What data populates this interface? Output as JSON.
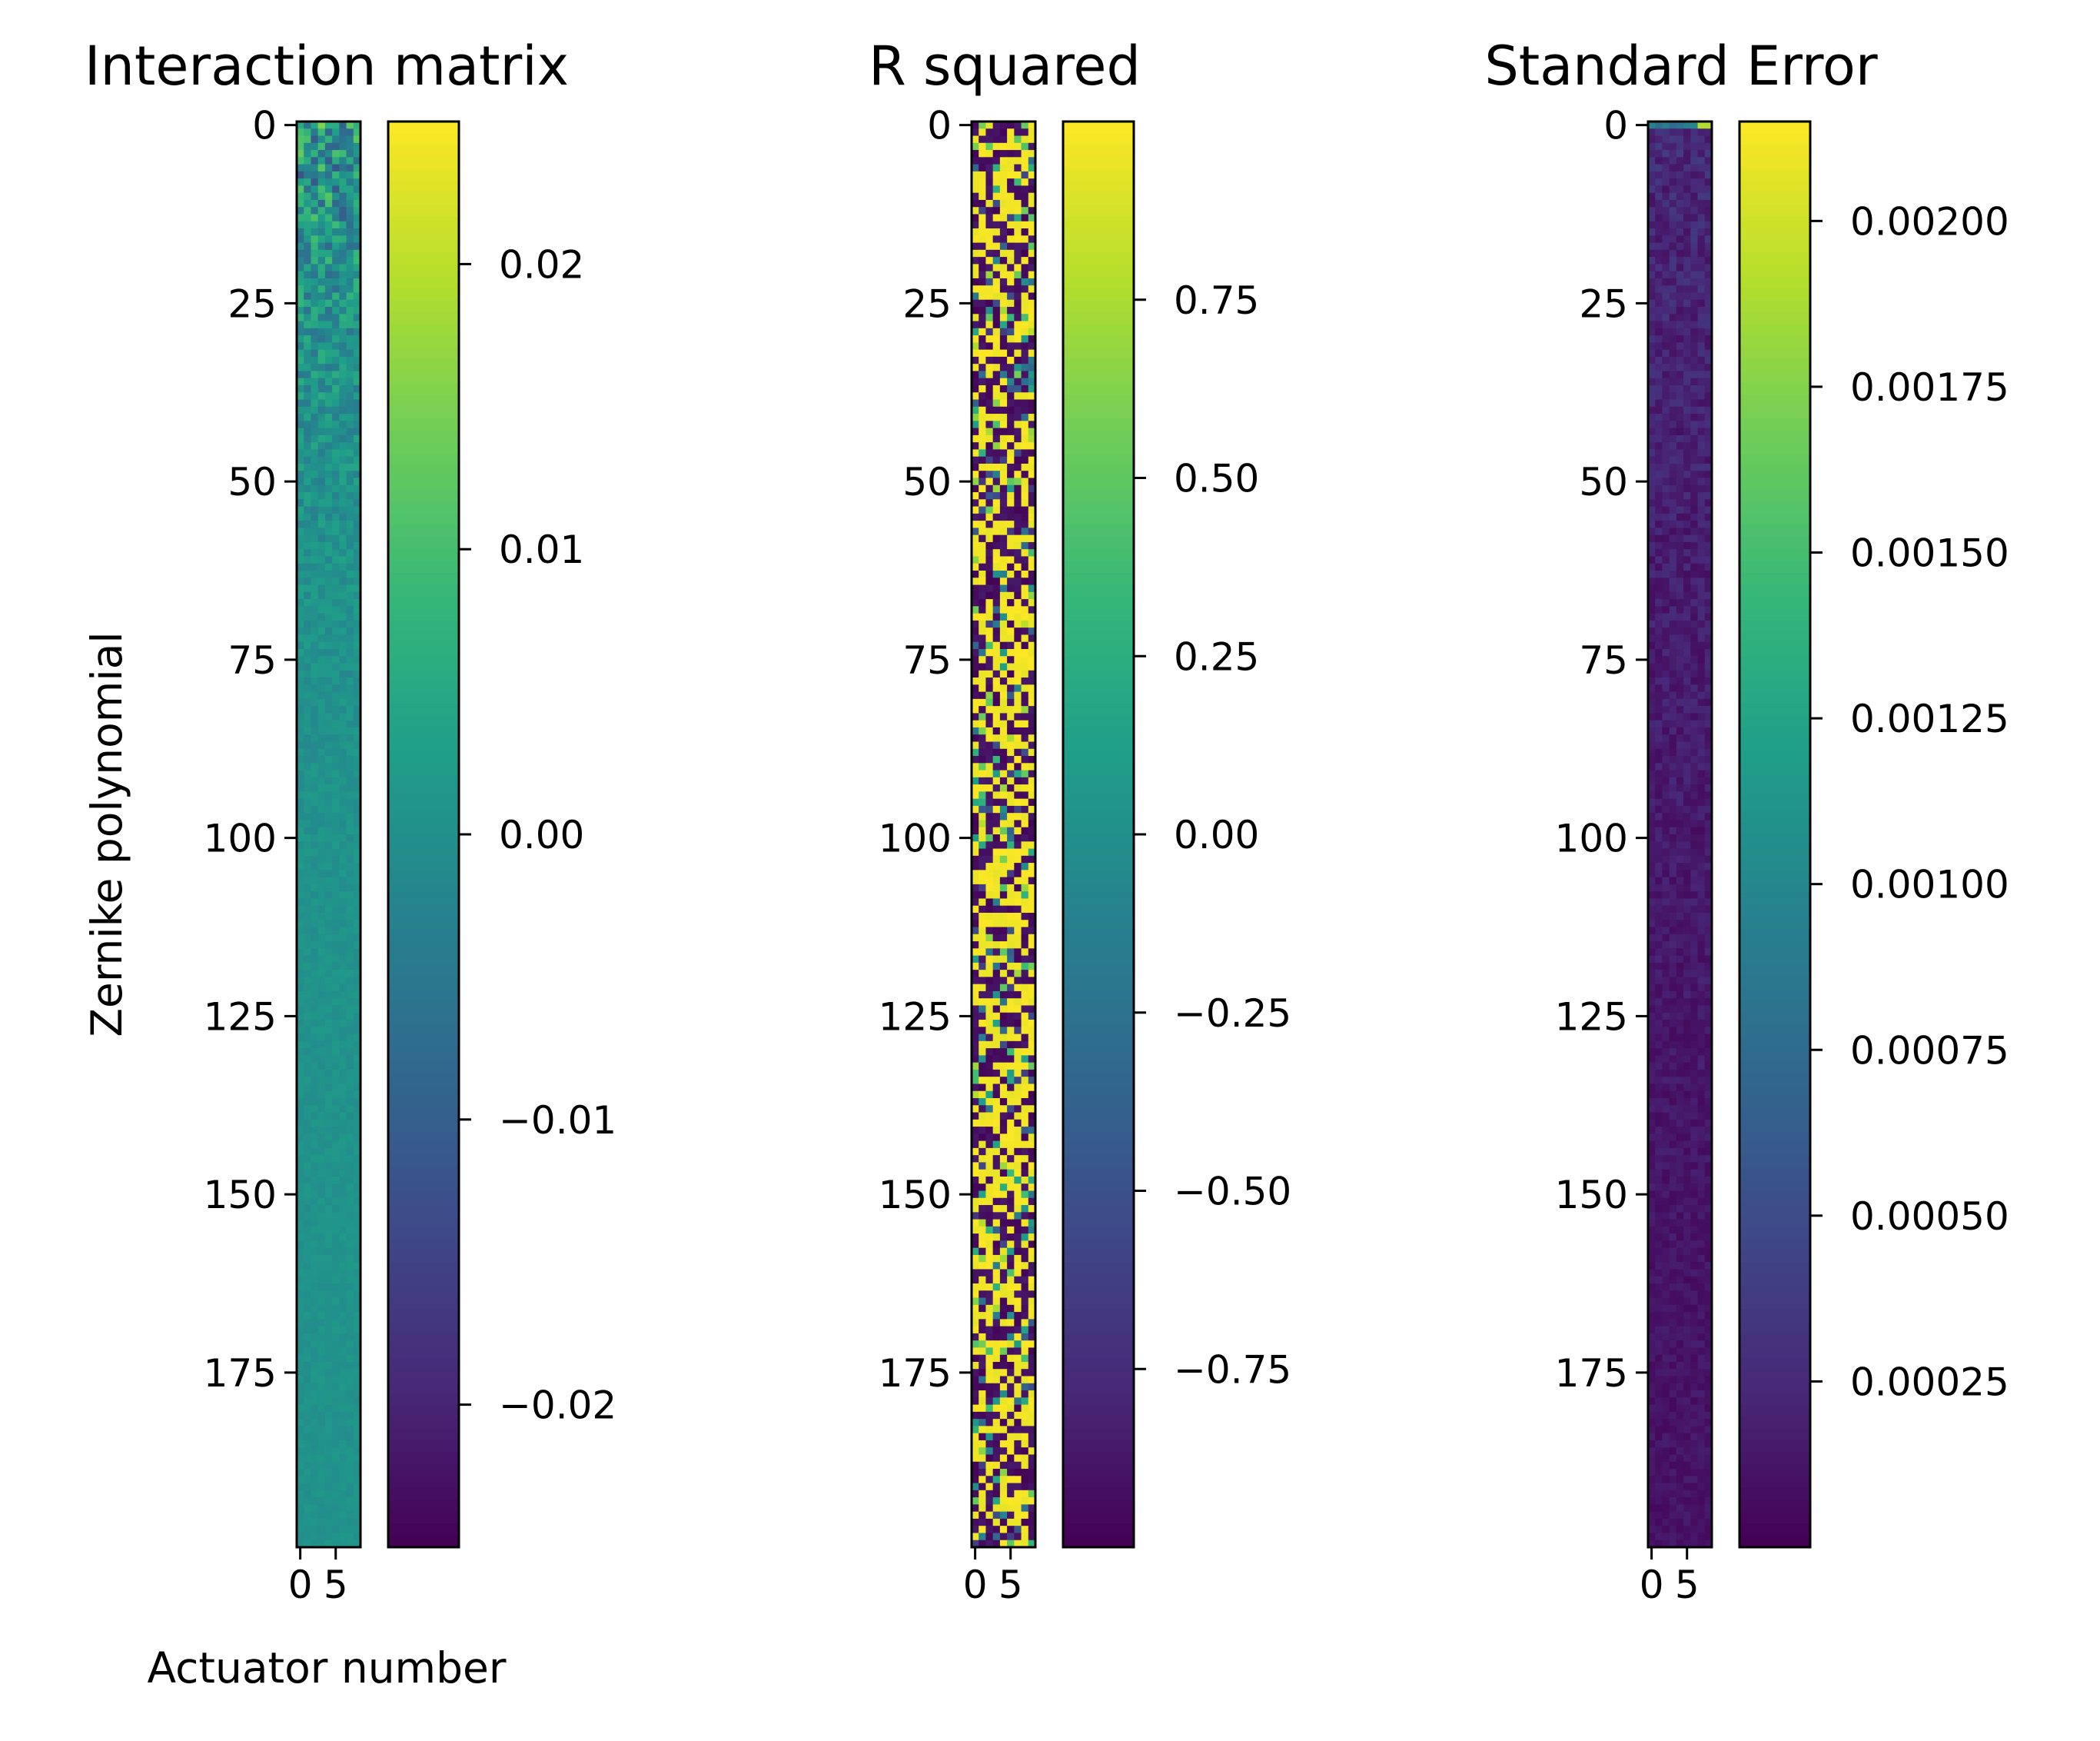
{
  "chart_data": [
    {
      "type": "heatmap",
      "title": "Interaction matrix",
      "xlabel": "Actuator number",
      "ylabel": "Zernike polynomial",
      "rows": 200,
      "cols": 9,
      "colormap": "viridis",
      "x_ticks": [
        "0",
        "5"
      ],
      "y_ticks": [
        "0",
        "25",
        "50",
        "75",
        "100",
        "125",
        "150",
        "175"
      ],
      "colorbar": {
        "range": [
          -0.025,
          0.025
        ],
        "ticks": [
          -0.02,
          -0.01,
          0.0,
          0.01,
          0.02
        ],
        "tick_labels": [
          "−0.02",
          "−0.01",
          "0.00",
          "0.01",
          "0.02"
        ]
      }
    },
    {
      "type": "heatmap",
      "title": "R squared",
      "xlabel": "",
      "ylabel": "",
      "rows": 200,
      "cols": 9,
      "colormap": "viridis",
      "x_ticks": [
        "0",
        "5"
      ],
      "y_ticks": [
        "0",
        "25",
        "50",
        "75",
        "100",
        "125",
        "150",
        "175"
      ],
      "colorbar": {
        "range": [
          -1.0,
          1.0
        ],
        "ticks": [
          -0.75,
          -0.5,
          -0.25,
          0.0,
          0.25,
          0.5,
          0.75
        ],
        "tick_labels": [
          "−0.75",
          "−0.50",
          "−0.25",
          "0.00",
          "0.25",
          "0.50",
          "0.75"
        ]
      }
    },
    {
      "type": "heatmap",
      "title": "Standard Error",
      "xlabel": "",
      "ylabel": "",
      "rows": 200,
      "cols": 9,
      "colormap": "viridis",
      "x_ticks": [
        "0",
        "5"
      ],
      "y_ticks": [
        "0",
        "25",
        "50",
        "75",
        "100",
        "125",
        "150",
        "175"
      ],
      "colorbar": {
        "range": [
          0.0,
          0.00215
        ],
        "ticks": [
          0.00025,
          0.0005,
          0.00075,
          0.001,
          0.00125,
          0.0015,
          0.00175,
          0.002
        ],
        "tick_labels": [
          "0.00025",
          "0.00050",
          "0.00075",
          "0.00100",
          "0.00125",
          "0.00150",
          "0.00175",
          "0.00200"
        ]
      }
    }
  ]
}
